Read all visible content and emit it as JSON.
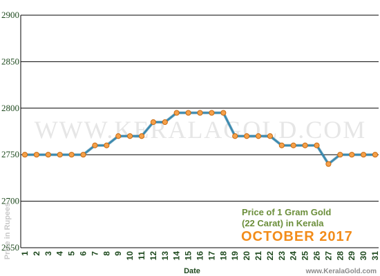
{
  "chart_data": {
    "type": "line",
    "title": "Price of 1 Gram Gold",
    "subtitle": "(22 Carat) in Kerala",
    "period": "OCTOBER 2017",
    "xlabel": "Date",
    "ylabel": "Price in Rupees",
    "watermark": "WWW.KERALAGOLD.COM",
    "source": "www.KeralaGold.com",
    "ylim": [
      2650,
      2900
    ],
    "yticks": [
      2650,
      2700,
      2750,
      2800,
      2850,
      2900
    ],
    "grid": true,
    "x": [
      1,
      2,
      3,
      4,
      5,
      6,
      7,
      8,
      9,
      10,
      11,
      12,
      13,
      14,
      15,
      16,
      17,
      18,
      19,
      20,
      21,
      22,
      23,
      24,
      25,
      26,
      27,
      28,
      29,
      30,
      31
    ],
    "values": [
      2750,
      2750,
      2750,
      2750,
      2750,
      2750,
      2760,
      2760,
      2770,
      2770,
      2770,
      2785,
      2785,
      2795,
      2795,
      2795,
      2795,
      2795,
      2770,
      2770,
      2770,
      2770,
      2760,
      2760,
      2760,
      2760,
      2740,
      2750,
      2750,
      2750,
      2750
    ],
    "colors": {
      "line": "#3a8ab0",
      "marker": "#f5a04a",
      "marker_edge": "#c86a10",
      "grid": "#000000"
    }
  }
}
